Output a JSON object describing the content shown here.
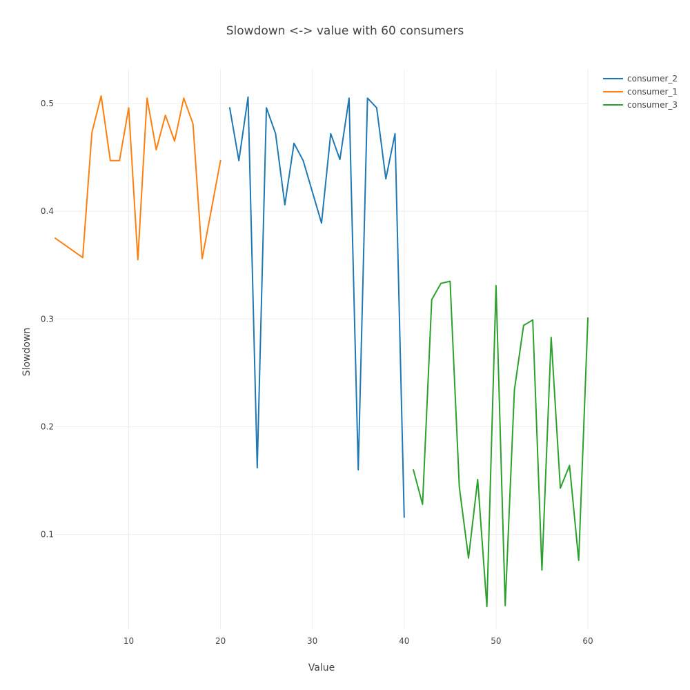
{
  "chart_data": {
    "type": "line",
    "title": "Slowdown <-> value with 60 consumers",
    "xlabel": "Value",
    "ylabel": "Slowdown",
    "xlim": [
      2,
      60
    ],
    "ylim": [
      0.012,
      0.532
    ],
    "xticks": [
      10,
      20,
      30,
      40,
      50,
      60
    ],
    "yticks": [
      0.1,
      0.2,
      0.3,
      0.4,
      0.5
    ],
    "grid": true,
    "legend_position": "top-right",
    "series": [
      {
        "name": "consumer_2",
        "color": "#1f77b4",
        "x": [
          21,
          22,
          23,
          24,
          25,
          26,
          27,
          28,
          29,
          30,
          31,
          32,
          33,
          34,
          35,
          36,
          37,
          38,
          39,
          40
        ],
        "y": [
          0.496,
          0.447,
          0.506,
          0.162,
          0.496,
          0.472,
          0.406,
          0.463,
          0.447,
          0.418,
          0.389,
          0.472,
          0.448,
          0.505,
          0.16,
          0.505,
          0.496,
          0.43,
          0.472,
          0.116
        ]
      },
      {
        "name": "consumer_1",
        "color": "#ff7f0e",
        "x": [
          2,
          5,
          6,
          7,
          8,
          9,
          10,
          11,
          12,
          13,
          14,
          15,
          16,
          17,
          18,
          20
        ],
        "y": [
          0.375,
          0.357,
          0.473,
          0.507,
          0.447,
          0.447,
          0.496,
          0.355,
          0.505,
          0.457,
          0.489,
          0.465,
          0.505,
          0.481,
          0.356,
          0.447
        ]
      },
      {
        "name": "consumer_3",
        "color": "#2ca02c",
        "x": [
          41,
          42,
          43,
          44,
          45,
          46,
          47,
          48,
          49,
          50,
          51,
          52,
          53,
          54,
          55,
          56,
          57,
          58,
          59,
          60
        ],
        "y": [
          0.16,
          0.128,
          0.318,
          0.333,
          0.335,
          0.144,
          0.078,
          0.151,
          0.033,
          0.331,
          0.034,
          0.234,
          0.294,
          0.299,
          0.067,
          0.283,
          0.143,
          0.164,
          0.076,
          0.301
        ]
      }
    ]
  }
}
